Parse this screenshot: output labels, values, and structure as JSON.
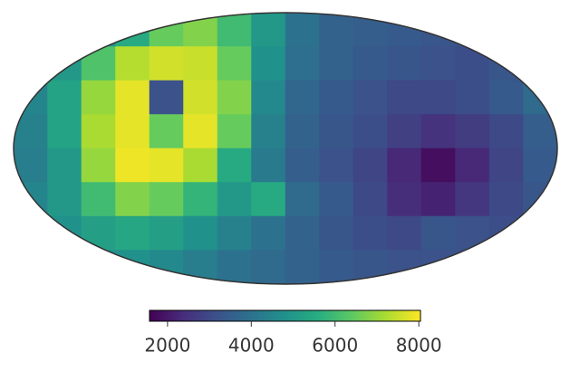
{
  "chart_data": {
    "type": "mollweide",
    "colormap": "viridis",
    "values": [
      [
        4500,
        4500,
        4800,
        5500,
        6500,
        6800,
        6000,
        5000,
        4000,
        3600,
        3500,
        3400,
        3300,
        3200,
        3300,
        3400
      ],
      [
        4600,
        5000,
        6200,
        7300,
        7600,
        7500,
        6500,
        4800,
        3900,
        3600,
        3400,
        3300,
        3200,
        3100,
        3300,
        3500
      ],
      [
        4500,
        5300,
        7000,
        7800,
        3200,
        7600,
        6800,
        4600,
        3700,
        3400,
        3200,
        3000,
        3000,
        3100,
        3400,
        3800
      ],
      [
        4400,
        5300,
        7200,
        7800,
        6500,
        7800,
        6500,
        4400,
        3600,
        3300,
        3100,
        2800,
        2500,
        2700,
        3000,
        3500
      ],
      [
        4300,
        5000,
        7000,
        7900,
        7800,
        7200,
        5500,
        4200,
        3500,
        3200,
        2900,
        2300,
        1800,
        2300,
        2900,
        3400
      ],
      [
        4500,
        5000,
        6000,
        6800,
        6500,
        5800,
        5000,
        5500,
        3800,
        3400,
        3000,
        2400,
        2200,
        2600,
        3000,
        3300
      ],
      [
        4600,
        4800,
        5200,
        5400,
        5200,
        4800,
        4400,
        4000,
        3600,
        3300,
        3100,
        3000,
        3300,
        3200,
        3100,
        3200
      ],
      [
        4500,
        4700,
        4800,
        4800,
        4600,
        4300,
        4000,
        3800,
        3600,
        3400,
        3300,
        3200,
        3200,
        3200,
        3200,
        3200
      ]
    ],
    "clim": [
      1570,
      8040
    ],
    "cticks": [
      2000,
      4000,
      6000,
      8000
    ]
  }
}
